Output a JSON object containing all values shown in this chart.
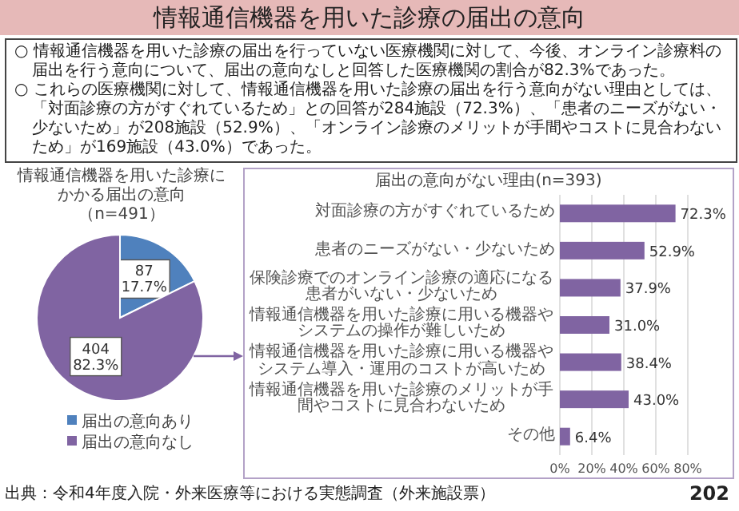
{
  "chart_data": [
    {
      "type": "other",
      "title": "情報通信機器を用いた診療の届出の意向",
      "annotations": [
        "○ 情報通信機器を用いた診療の届出を行っていない医療機関に対して、今後、オンライン診療料の届出を行う意向について、届出の意向なしと回答した医療機関の割合が82.3%であった。",
        "○ これらの医療機関に対して、情報通信機器を用いた診療の届出を行う意向がない理由としては、「対面診療の方がすぐれているため」との回答が284施設（72.3%）、「患者のニーズがない・少ないため」が208施設（52.9%）、「オンライン診療のメリットが手間やコストに見合わないため」が169施設（43.0%）であった。",
        "出典：令和4年度入院・外来医療等における実態調査（外来施設票）",
        "202"
      ]
    },
    {
      "type": "pie",
      "title": "情報通信機器を用いた診療にかかる届出の意向（n=491）",
      "categories": [
        "届出の意向あり",
        "届出の意向なし"
      ],
      "values": [
        87,
        404
      ],
      "colors": [
        "#4f81bd",
        "#8064a2"
      ],
      "value_labels": [
        "87\n17.7%",
        "404\n82.3%"
      ],
      "legend": "bottom"
    },
    {
      "type": "bar",
      "orientation": "horizontal",
      "title": "届出の意向がない理由(n=393)",
      "categories": [
        "対面診療の方がすぐれているため",
        "患者のニーズがない・少ないため",
        "保険診療でのオンライン診療の適応になる患者がいない・少ないため",
        "情報通信機器を用いた診療に用いる機器やシステムの操作が難しいため",
        "情報通信機器を用いた診療に用いる機器やシステム導入・運用のコストが高いため",
        "情報通信機器を用いた診療のメリットが手間やコストに見合わないため",
        "その他"
      ],
      "values": [
        72.3,
        52.9,
        37.9,
        31.0,
        38.4,
        43.0,
        6.4
      ],
      "value_labels": [
        "72.3%",
        "52.9%",
        "37.9%",
        "31.0%",
        "38.4%",
        "43.0%",
        "6.4%"
      ],
      "color": "#8064a2",
      "xlim": [
        0,
        80
      ],
      "xticks": [
        {
          "value": 0,
          "label": "0%"
        },
        {
          "value": 20,
          "label": "20%"
        },
        {
          "value": 40,
          "label": "40%"
        },
        {
          "value": 60,
          "label": "60%"
        },
        {
          "value": 80,
          "label": "80%"
        }
      ],
      "grid": "x"
    }
  ]
}
